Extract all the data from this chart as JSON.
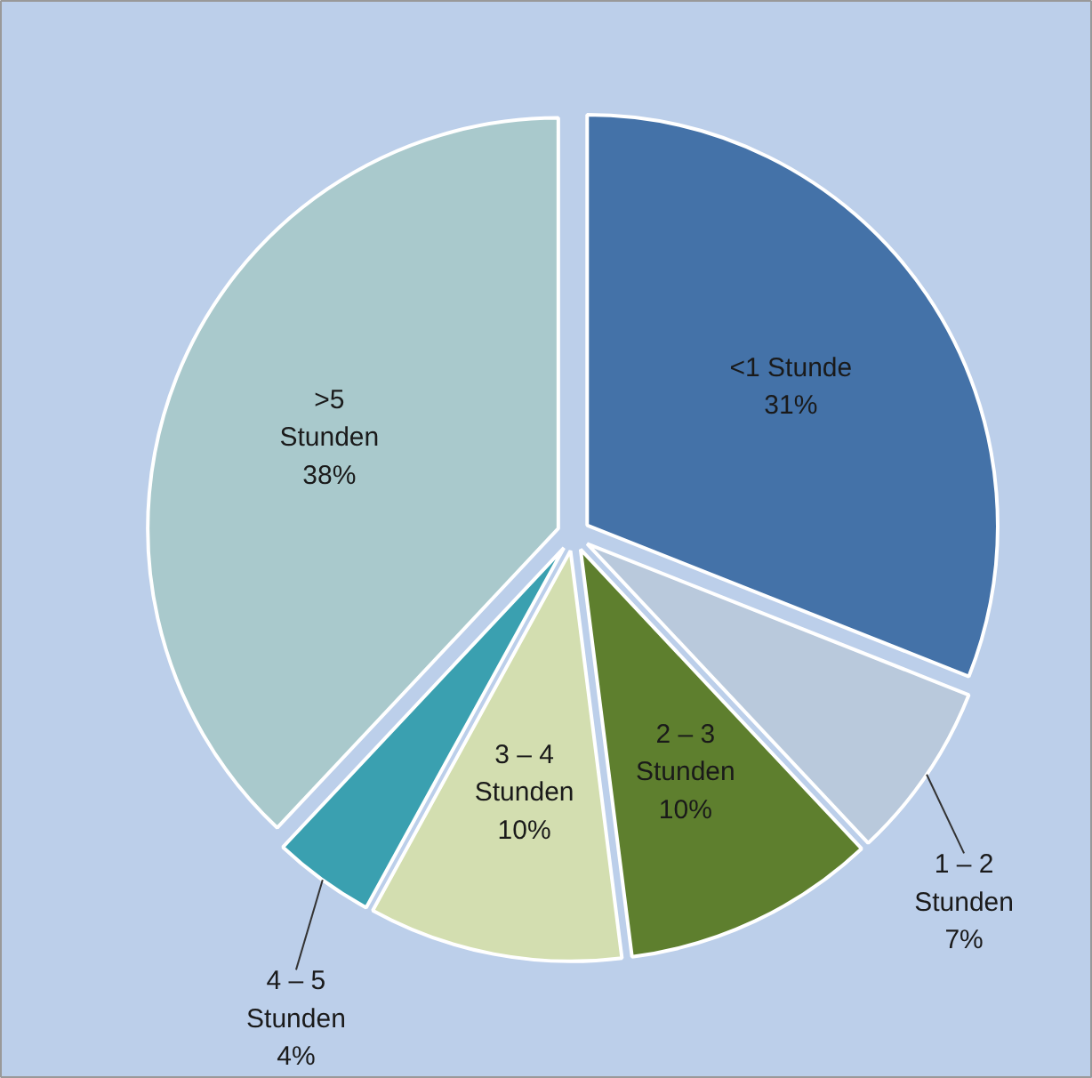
{
  "chart_data": {
    "type": "pie",
    "categories": [
      "<1 Stunde",
      "1 – 2 Stunden",
      "2 – 3 Stunden",
      "3 – 4 Stunden",
      "4 – 5 Stunden",
      ">5 Stunden"
    ],
    "values": [
      31,
      7,
      10,
      10,
      4,
      38
    ],
    "value_labels": [
      "31%",
      "7%",
      "10%",
      "10%",
      "4%",
      "38%"
    ],
    "colors": [
      "#4472a8",
      "#b9c9dc",
      "#5e7f2e",
      "#d3deb0",
      "#3aa0b0",
      "#a9c9cc"
    ]
  }
}
